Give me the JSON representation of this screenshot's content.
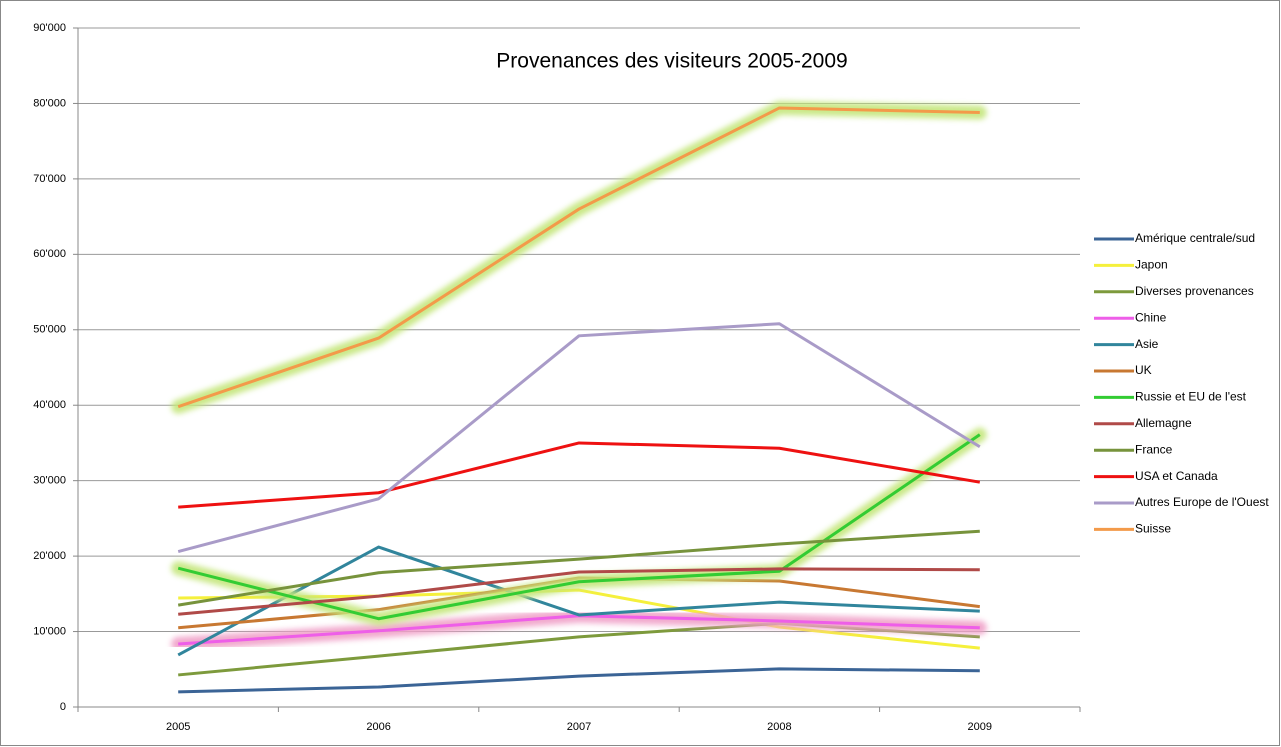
{
  "chart_data": {
    "type": "line",
    "title": "Provenances des visiteurs 2005-2009",
    "categories": [
      "2005",
      "2006",
      "2007",
      "2008",
      "2009"
    ],
    "ylim": [
      0,
      90000
    ],
    "yticks": [
      0,
      {
        "value": 10000,
        "label": "10'000"
      },
      {
        "value": 20000,
        "label": "20'000"
      },
      {
        "value": 30000,
        "label": "30'000"
      },
      {
        "value": 40000,
        "label": "40'000"
      },
      {
        "value": 50000,
        "label": "50'000"
      },
      {
        "value": 60000,
        "label": "60'000"
      },
      {
        "value": 70000,
        "label": "70'000"
      },
      {
        "value": 80000,
        "label": "80'000"
      },
      {
        "value": 90000,
        "label": "90'000"
      }
    ],
    "grid": true,
    "legend": "right",
    "series": [
      {
        "name": "Amérique centrale/sud",
        "color": "#3b6496",
        "values": [
          2000,
          2650,
          4100,
          5050,
          4800
        ]
      },
      {
        "name": "Japon",
        "color": "#f5f03c",
        "values": [
          14450,
          14700,
          15500,
          10600,
          7800
        ]
      },
      {
        "name": "Diverses provenances",
        "color": "#7d9a3c",
        "values": [
          4250,
          6750,
          9300,
          11100,
          9300
        ]
      },
      {
        "name": "Chine",
        "color": "#ee5ee8",
        "glow": "#f0a0c8",
        "values": [
          8350,
          10100,
          12100,
          11400,
          10500
        ]
      },
      {
        "name": "Asie",
        "color": "#31859c",
        "values": [
          6900,
          21200,
          12200,
          13900,
          12700
        ]
      },
      {
        "name": "UK",
        "color": "#c87832",
        "values": [
          10500,
          12900,
          17100,
          16700,
          13300
        ]
      },
      {
        "name": "Russie et EU de l'est",
        "color": "#33cc33",
        "glow": "#c4e67c",
        "values": [
          18400,
          11700,
          16600,
          18000,
          36100
        ]
      },
      {
        "name": "Allemagne",
        "color": "#b04a48",
        "values": [
          12300,
          14700,
          17900,
          18300,
          18200
        ]
      },
      {
        "name": "France",
        "color": "#77933c",
        "values": [
          13500,
          17800,
          19600,
          21600,
          23300
        ]
      },
      {
        "name": "USA et Canada",
        "color": "#ee1111",
        "values": [
          26500,
          28400,
          35000,
          34300,
          29800
        ]
      },
      {
        "name": "Autres Europe de l'Ouest",
        "color": "#a99bc8",
        "values": [
          20600,
          27600,
          49200,
          50800,
          34500
        ]
      },
      {
        "name": "Suisse",
        "color": "#f39a4a",
        "glow": "#c4e67c",
        "values": [
          39800,
          48900,
          66000,
          79400,
          78800
        ]
      }
    ]
  }
}
